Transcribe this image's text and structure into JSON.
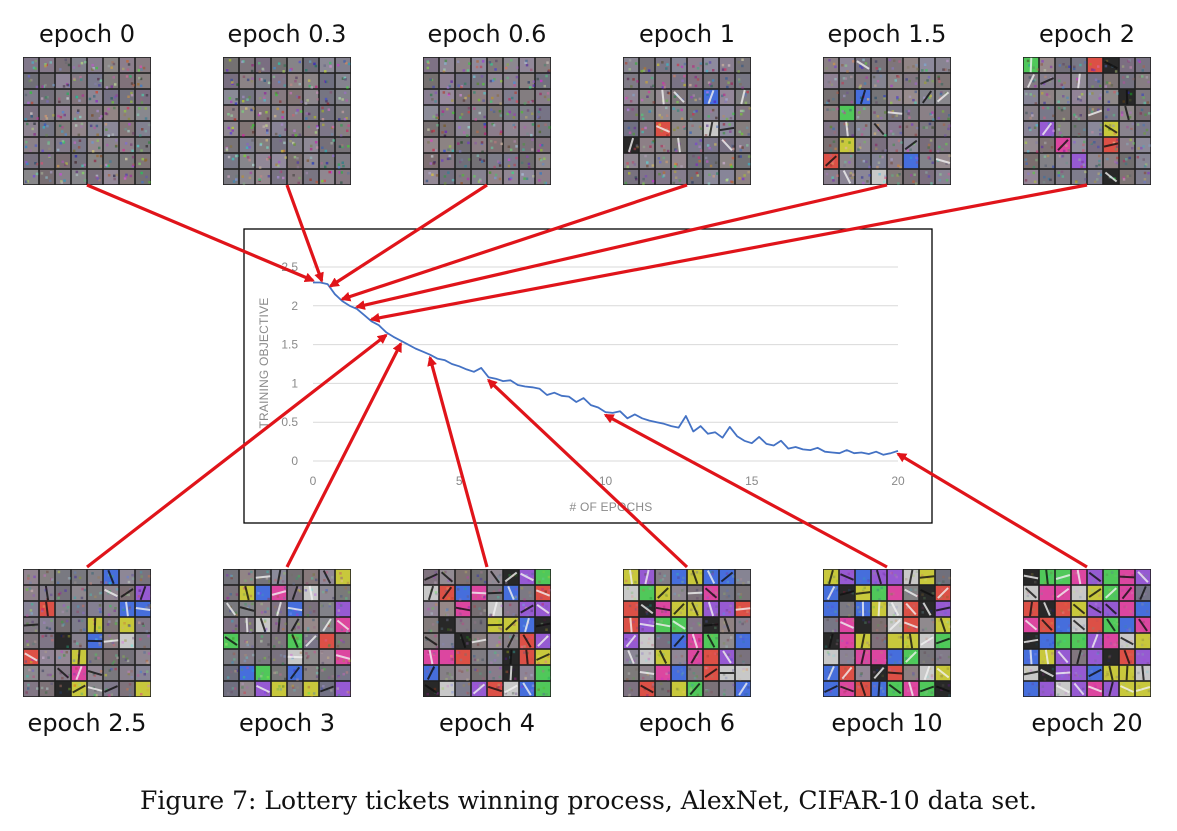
{
  "figure": {
    "caption": "Figure 7: Lottery tickets winning process, AlexNet, CIFAR-10 data set.",
    "colors": {
      "arrow": "#e0141a",
      "line": "#4472c4",
      "grid": "#d9d9d9",
      "frame": "#000000"
    }
  },
  "panels_top": [
    {
      "label": "epoch 0",
      "structure": 0.0,
      "saturation": 0.05
    },
    {
      "label": "epoch 0.3",
      "structure": 0.0,
      "saturation": 0.06
    },
    {
      "label": "epoch 0.6",
      "structure": 0.02,
      "saturation": 0.08
    },
    {
      "label": "epoch 1",
      "structure": 0.12,
      "saturation": 0.3
    },
    {
      "label": "epoch 1.5",
      "structure": 0.25,
      "saturation": 0.45
    },
    {
      "label": "epoch 2",
      "structure": 0.35,
      "saturation": 0.55
    }
  ],
  "panels_bottom": [
    {
      "label": "epoch 2.5",
      "structure": 0.45,
      "saturation": 0.6
    },
    {
      "label": "epoch 3",
      "structure": 0.55,
      "saturation": 0.65
    },
    {
      "label": "epoch 4",
      "structure": 0.7,
      "saturation": 0.72
    },
    {
      "label": "epoch 6",
      "structure": 0.8,
      "saturation": 0.8
    },
    {
      "label": "epoch 10",
      "structure": 0.9,
      "saturation": 0.85
    },
    {
      "label": "epoch 20",
      "structure": 1.0,
      "saturation": 0.9
    }
  ],
  "chart_data": {
    "type": "line",
    "title": "",
    "xlabel": "# OF EPOCHS",
    "ylabel": "TRAINING OBJECTIVE",
    "xlim": [
      0,
      20
    ],
    "ylim": [
      0,
      2.5
    ],
    "xticks": [
      0,
      5,
      10,
      15,
      20
    ],
    "yticks": [
      0,
      0.5,
      1,
      1.5,
      2,
      2.5
    ],
    "xtick_labels": [
      "0",
      "5",
      "10",
      "15",
      "20"
    ],
    "ytick_labels": [
      "0",
      "0.5",
      "1",
      "1.5",
      "2",
      "2.5"
    ],
    "grid": "horizontal",
    "series": [
      {
        "color": "#4472c4",
        "x": [
          0.0,
          0.25,
          0.5,
          0.75,
          1.0,
          1.25,
          1.5,
          1.75,
          2.0,
          2.25,
          2.5,
          2.75,
          3.0,
          3.25,
          3.5,
          3.75,
          4.0,
          4.25,
          4.5,
          4.75,
          5.0,
          5.25,
          5.5,
          5.75,
          6.0,
          6.25,
          6.5,
          6.75,
          7.0,
          7.25,
          7.5,
          7.75,
          8.0,
          8.25,
          8.5,
          8.75,
          9.0,
          9.25,
          9.5,
          9.75,
          10.0,
          10.25,
          10.5,
          10.75,
          11.0,
          11.25,
          11.5,
          11.75,
          12.0,
          12.25,
          12.5,
          12.75,
          13.0,
          13.25,
          13.5,
          13.75,
          14.0,
          14.25,
          14.5,
          14.75,
          15.0,
          15.25,
          15.5,
          15.75,
          16.0,
          16.25,
          16.5,
          16.75,
          17.0,
          17.25,
          17.5,
          17.75,
          18.0,
          18.25,
          18.5,
          18.75,
          19.0,
          19.25,
          19.5,
          19.75,
          20.0
        ],
        "y": [
          2.3,
          2.3,
          2.28,
          2.15,
          2.06,
          2.0,
          1.96,
          1.88,
          1.8,
          1.75,
          1.66,
          1.6,
          1.55,
          1.5,
          1.45,
          1.41,
          1.37,
          1.32,
          1.3,
          1.25,
          1.22,
          1.18,
          1.15,
          1.2,
          1.08,
          1.06,
          1.03,
          1.04,
          0.98,
          0.96,
          0.95,
          0.93,
          0.85,
          0.88,
          0.84,
          0.83,
          0.76,
          0.81,
          0.72,
          0.69,
          0.63,
          0.62,
          0.64,
          0.55,
          0.6,
          0.55,
          0.52,
          0.5,
          0.48,
          0.45,
          0.43,
          0.58,
          0.38,
          0.45,
          0.35,
          0.37,
          0.3,
          0.44,
          0.32,
          0.26,
          0.23,
          0.31,
          0.22,
          0.2,
          0.26,
          0.16,
          0.18,
          0.15,
          0.14,
          0.17,
          0.12,
          0.11,
          0.1,
          0.14,
          0.1,
          0.11,
          0.09,
          0.12,
          0.08,
          0.1,
          0.13
        ]
      }
    ]
  }
}
